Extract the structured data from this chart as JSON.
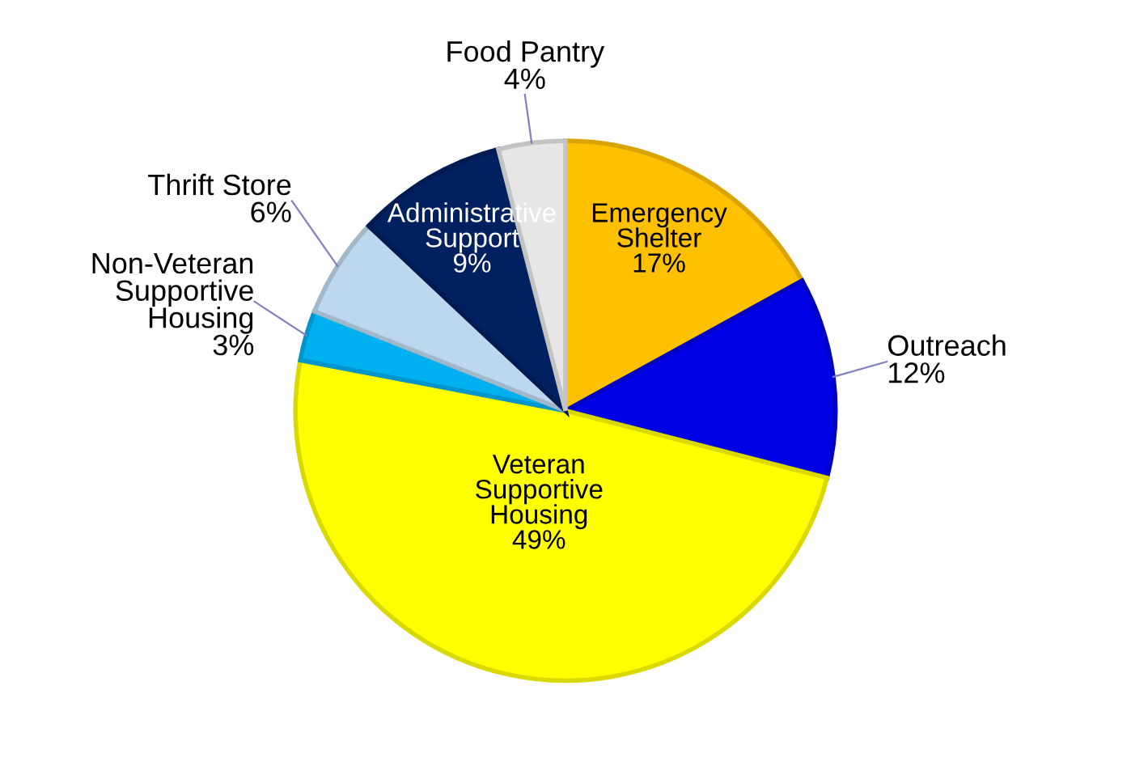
{
  "chart_data": {
    "type": "pie",
    "categories": [
      "Emergency Shelter",
      "Outreach",
      "Veteran Supportive Housing",
      "Non-Veteran Supportive Housing",
      "Thrift Store",
      "Administrative Support",
      "Food Pantry"
    ],
    "values": [
      17,
      12,
      49,
      3,
      6,
      9,
      4
    ],
    "colors": [
      "#ffc000",
      "#0000e6",
      "#ffff00",
      "#00b0f0",
      "#bdd7ee",
      "#002060",
      "#e6e6e6"
    ],
    "value_labels": [
      "17%",
      "12%",
      "49%",
      "3%",
      "6%",
      "9%",
      "4%"
    ],
    "legend": false
  }
}
